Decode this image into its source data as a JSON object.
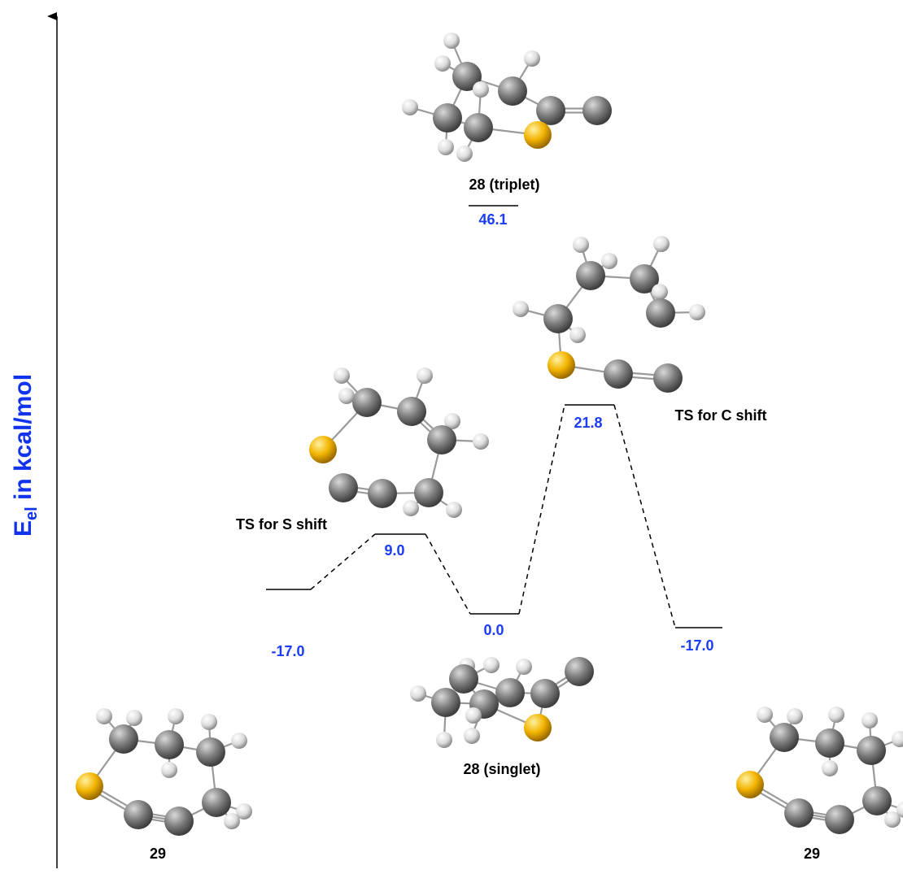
{
  "y_axis": {
    "main": "E",
    "subscript": "el",
    "rest": " in kcal/mol",
    "color": "#1133ee"
  },
  "energy_color": "#1a3cf5",
  "levels": {
    "reactant": "-17.0",
    "ts_s": "9.0",
    "singlet": "0.0",
    "ts_c": "21.8",
    "product": "-17.0",
    "triplet": "46.1"
  },
  "labels": {
    "reactant": "29",
    "product": "29",
    "singlet": "28 (singlet)",
    "triplet": "28 (triplet)",
    "ts_s": "TS for S shift",
    "ts_c": "TS for C shift"
  },
  "atom_colors": {
    "carbon": "#7d7d7d",
    "hydrogen": "#e6e6e6",
    "sulfur": "#f2b400"
  }
}
